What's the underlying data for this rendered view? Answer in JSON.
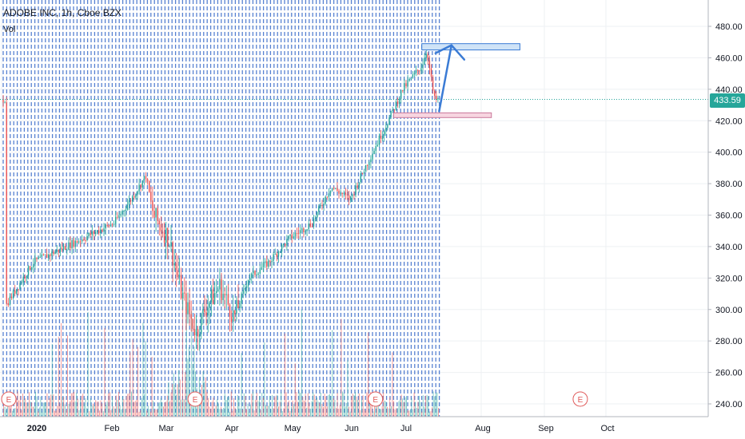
{
  "header": {
    "title": "ADOBE INC, 1h, Cboe BZX",
    "volume_label": "Vol"
  },
  "last_price": "433.59",
  "colors": {
    "up": "#26a69a",
    "down": "#ef5350",
    "grid_dash": "#3a6cc9",
    "arrow": "#3a7bd5",
    "target_box": "#cfe3f7",
    "support_box": "#f7d5e0",
    "earnings": "#e05a5a"
  },
  "earnings_marker": "E",
  "chart_data": {
    "type": "candlestick",
    "title": "ADOBE INC, 1h, Cboe BZX",
    "y_ticks": [
      "480.00",
      "460.00",
      "440.00",
      "420.00",
      "400.00",
      "380.00",
      "360.00",
      "340.00",
      "320.00",
      "300.00",
      "280.00",
      "260.00",
      "240.00"
    ],
    "x_ticks": [
      "2020",
      "Feb",
      "Mar",
      "Apr",
      "May",
      "Jun",
      "Jul",
      "Aug",
      "Sep",
      "Oct"
    ],
    "ylim": [
      236,
      496
    ],
    "price_path": [
      [
        "2020-01-02",
        302
      ],
      [
        "2020-01-10",
        330
      ],
      [
        "2020-01-24",
        345
      ],
      [
        "2020-02-03",
        355
      ],
      [
        "2020-02-12",
        370
      ],
      [
        "2020-02-20",
        385
      ],
      [
        "2020-02-24",
        360
      ],
      [
        "2020-03-03",
        345
      ],
      [
        "2020-03-09",
        310
      ],
      [
        "2020-03-16",
        285
      ],
      [
        "2020-03-20",
        300
      ],
      [
        "2020-03-27",
        315
      ],
      [
        "2020-04-03",
        295
      ],
      [
        "2020-04-10",
        320
      ],
      [
        "2020-04-20",
        330
      ],
      [
        "2020-04-30",
        345
      ],
      [
        "2020-05-12",
        355
      ],
      [
        "2020-05-22",
        378
      ],
      [
        "2020-06-01",
        370
      ],
      [
        "2020-06-10",
        392
      ],
      [
        "2020-06-22",
        420
      ],
      [
        "2020-06-30",
        440
      ],
      [
        "2020-07-08",
        455
      ],
      [
        "2020-07-10",
        465
      ],
      [
        "2020-07-13",
        433.59
      ]
    ],
    "earnings_dates": [
      "2020-01-01",
      "2020-03-12",
      "2020-06-11",
      "2020-09-15"
    ],
    "target_zone": {
      "date_start": "2020-07-08",
      "date_end": "2020-08-20",
      "low": 465,
      "high": 469
    },
    "support_zone": {
      "date_start": "2020-06-25",
      "date_end": "2020-08-06",
      "low": 422,
      "high": 425
    },
    "projection_arrow": [
      [
        "2020-07-15",
        426
      ],
      [
        "2020-07-20",
        468
      ]
    ],
    "last_price": 433.59
  }
}
